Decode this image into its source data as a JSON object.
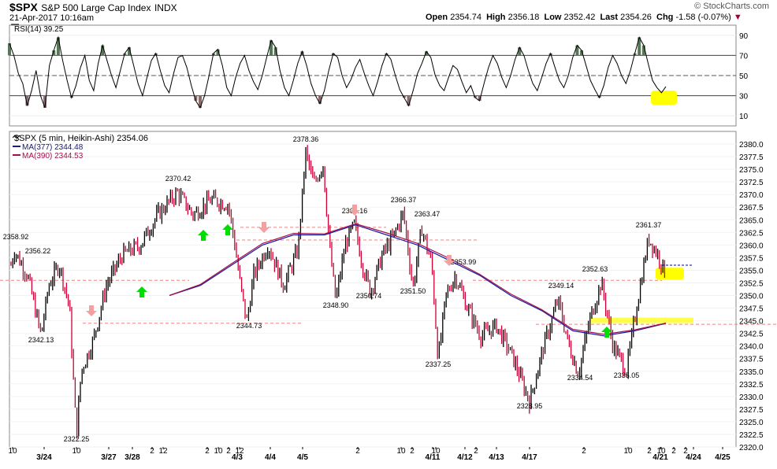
{
  "header": {
    "symbol": "$SPX",
    "name": "S&P 500 Large Cap Index",
    "exchange": "INDX",
    "datetime": "21-Apr-2017 10:16am",
    "open_label": "Open",
    "open": "2354.74",
    "high_label": "High",
    "high": "2356.18",
    "low_label": "Low",
    "low": "2352.42",
    "last_label": "Last",
    "last": "2354.26",
    "chg_label": "Chg",
    "chg": "-1.58 (-0.07%)",
    "brand": "© StockCharts.com"
  },
  "colors": {
    "candle": "#000000",
    "down_trace": "#cc0033",
    "ma377": "#1a1aa0",
    "ma390": "#a0104a",
    "dashed_red": "#f08080",
    "highlight": "#ffff00",
    "up_arrow": "#00dd00",
    "down_arrow": "#f4a0a0",
    "rsi_overbought": "#557755",
    "rsi_oversold": "#8a6a6a"
  },
  "chart_data": [
    {
      "type": "line",
      "legend": "RSI(14) 39.25",
      "ylim": [
        0,
        100
      ],
      "y_ticks": [
        "10",
        "30",
        "50",
        "70",
        "90"
      ],
      "reference_levels": [
        30,
        50,
        70
      ],
      "series": [
        {
          "values": [
            82,
            70,
            52,
            42,
            20,
            35,
            55,
            30,
            18,
            60,
            75,
            88,
            65,
            45,
            28,
            40,
            58,
            70,
            45,
            35,
            62,
            80,
            65,
            50,
            38,
            55,
            72,
            78,
            60,
            42,
            30,
            48,
            65,
            72,
            55,
            40,
            33,
            52,
            68,
            70,
            58,
            40,
            25,
            18,
            30,
            50,
            72,
            76,
            60,
            38,
            30,
            48,
            62,
            70,
            55,
            44,
            36,
            50,
            68,
            85,
            78,
            55,
            38,
            30,
            45,
            62,
            74,
            60,
            42,
            30,
            22,
            35,
            55,
            72,
            68,
            50,
            38,
            46,
            58,
            66,
            52,
            40,
            30,
            44,
            60,
            72,
            66,
            50,
            36,
            28,
            20,
            35,
            52,
            62,
            74,
            68,
            50,
            40,
            35,
            48,
            60,
            56,
            44,
            33,
            40,
            28,
            25,
            42,
            58,
            70,
            62,
            48,
            38,
            50,
            66,
            78,
            70,
            55,
            42,
            35,
            48,
            62,
            72,
            58,
            45,
            38,
            50,
            68,
            80,
            75,
            60,
            45,
            36,
            28,
            40,
            58,
            70,
            62,
            50,
            42,
            55,
            72,
            88,
            80,
            62,
            45,
            38,
            33,
            39
          ]
        }
      ]
    },
    {
      "type": "candlestick",
      "legend": "$SPX (5 min, Heikin-Ashi) 2354.06",
      "ylim": [
        2320,
        2382.5
      ],
      "y_ticks": [
        "2320.0",
        "2322.5",
        "2325.0",
        "2327.5",
        "2330.0",
        "2332.5",
        "2335.0",
        "2337.5",
        "2340.0",
        "2342.5",
        "2345.0",
        "2347.5",
        "2350.0",
        "2352.5",
        "2355.0",
        "2357.5",
        "2360.0",
        "2362.5",
        "2365.0",
        "2367.5",
        "2370.0",
        "2372.5",
        "2375.0",
        "2377.5",
        "2380.0"
      ],
      "x_ticks": [
        {
          "label": "10",
          "bold": false
        },
        {
          "label": "3/24",
          "bold": true
        },
        {
          "label": "10",
          "bold": false
        },
        {
          "label": "3/27",
          "bold": true
        },
        {
          "label": "3/28",
          "bold": true
        },
        {
          "label": "2",
          "bold": false
        },
        {
          "label": "12",
          "bold": false
        },
        {
          "label": "2",
          "bold": false
        },
        {
          "label": "10",
          "bold": false
        },
        {
          "label": "2",
          "bold": false
        },
        {
          "label": "12",
          "bold": false
        },
        {
          "label": "4/3",
          "bold": true
        },
        {
          "label": "4/4",
          "bold": true
        },
        {
          "label": "4/5",
          "bold": true
        },
        {
          "label": "2",
          "bold": false
        },
        {
          "label": "10",
          "bold": false
        },
        {
          "label": "2",
          "bold": false
        },
        {
          "label": "4/11",
          "bold": true
        },
        {
          "label": "10",
          "bold": false
        },
        {
          "label": "4/12",
          "bold": true
        },
        {
          "label": "2",
          "bold": false
        },
        {
          "label": "4/13",
          "bold": true
        },
        {
          "label": "4/17",
          "bold": true
        },
        {
          "label": "2",
          "bold": false
        },
        {
          "label": "10",
          "bold": false
        },
        {
          "label": "2",
          "bold": false
        },
        {
          "label": "10",
          "bold": false
        },
        {
          "label": "4/21",
          "bold": true
        },
        {
          "label": "2",
          "bold": false
        },
        {
          "label": "2",
          "bold": false
        },
        {
          "label": "4/24",
          "bold": true
        },
        {
          "label": "4/25",
          "bold": true
        }
      ],
      "price_path": [
        [
          0,
          2346
        ],
        [
          18,
          2358.92
        ],
        [
          35,
          2354
        ],
        [
          52,
          2342.13
        ],
        [
          62,
          2352
        ],
        [
          75,
          2356.22
        ],
        [
          88,
          2348
        ],
        [
          97,
          2322.25
        ],
        [
          103,
          2335
        ],
        [
          118,
          2341
        ],
        [
          135,
          2352
        ],
        [
          155,
          2358
        ],
        [
          178,
          2360
        ],
        [
          200,
          2366
        ],
        [
          225,
          2370.42
        ],
        [
          245,
          2366
        ],
        [
          268,
          2369
        ],
        [
          290,
          2368
        ],
        [
          298,
          2360
        ],
        [
          305,
          2352
        ],
        [
          313,
          2344.73
        ],
        [
          322,
          2354
        ],
        [
          340,
          2360
        ],
        [
          360,
          2352
        ],
        [
          378,
          2359
        ],
        [
          388,
          2378.36
        ],
        [
          398,
          2372
        ],
        [
          410,
          2376
        ],
        [
          418,
          2360
        ],
        [
          426,
          2348.9
        ],
        [
          438,
          2360
        ],
        [
          450,
          2364.16
        ],
        [
          460,
          2356
        ],
        [
          470,
          2350.74
        ],
        [
          485,
          2358
        ],
        [
          500,
          2362
        ],
        [
          512,
          2366.37
        ],
        [
          524,
          2351.5
        ],
        [
          535,
          2363.47
        ],
        [
          548,
          2356
        ],
        [
          556,
          2337.25
        ],
        [
          566,
          2350
        ],
        [
          578,
          2353.99
        ],
        [
          592,
          2348
        ],
        [
          610,
          2342
        ],
        [
          630,
          2344
        ],
        [
          650,
          2338
        ],
        [
          672,
          2328.95
        ],
        [
          690,
          2340
        ],
        [
          708,
          2349.14
        ],
        [
          722,
          2340
        ],
        [
          734,
          2334.54
        ],
        [
          748,
          2345
        ],
        [
          763,
          2352.63
        ],
        [
          778,
          2340
        ],
        [
          795,
          2335.05
        ],
        [
          808,
          2348
        ],
        [
          823,
          2361.37
        ],
        [
          835,
          2358
        ],
        [
          845,
          2354.06
        ]
      ],
      "annotations": [
        "2358.92",
        "2356.22",
        "2342.13",
        "2322.25",
        "2370.42",
        "2344.73",
        "2378.36",
        "2348.90",
        "2364.16",
        "2350.74",
        "2366.37",
        "2363.47",
        "2351.50",
        "2337.25",
        "2353.99",
        "2328.95",
        "2349.14",
        "2334.54",
        "2352.63",
        "2335.05",
        "2361.37"
      ],
      "series": [
        {
          "name": "MA(377) 2344.48",
          "values": [
            2350,
            2352,
            2356,
            2360,
            2362,
            2362,
            2364,
            2362,
            2360,
            2357,
            2354,
            2350,
            2347,
            2343,
            2342,
            2343,
            2344.48
          ]
        },
        {
          "name": "MA(390) 2344.53",
          "values": [
            2350,
            2352.2,
            2356.3,
            2360.3,
            2362.3,
            2362.2,
            2364.2,
            2362.4,
            2360.3,
            2357.4,
            2354.2,
            2350.3,
            2347.2,
            2343.3,
            2342.3,
            2343.2,
            2344.53
          ]
        }
      ]
    }
  ]
}
